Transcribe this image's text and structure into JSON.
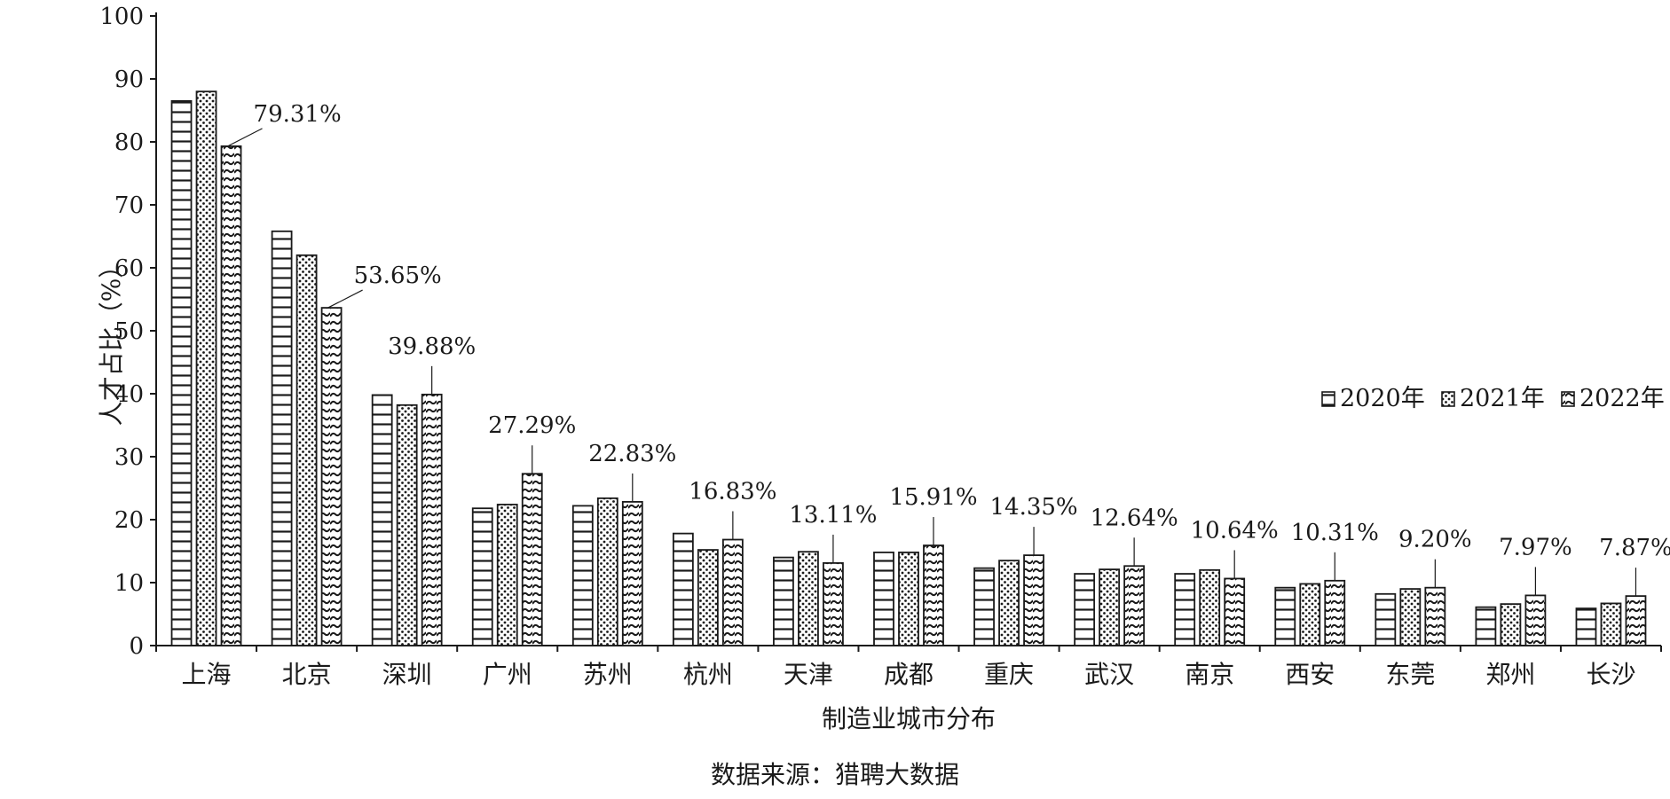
{
  "chart_data": {
    "type": "bar",
    "xlabel": "制造业城市分布",
    "ylabel": "人才占比（%）",
    "ylim": [
      0,
      100
    ],
    "yticks": [
      0,
      10,
      20,
      30,
      40,
      50,
      60,
      70,
      80,
      90,
      100
    ],
    "grid": false,
    "legend_position": "right",
    "categories": [
      "上海",
      "北京",
      "深圳",
      "广州",
      "苏州",
      "杭州",
      "天津",
      "成都",
      "重庆",
      "武汉",
      "南京",
      "西安",
      "东莞",
      "郑州",
      "长沙"
    ],
    "series": [
      {
        "name": "2020年",
        "pattern": "horizontal-lines",
        "values": [
          86.5,
          65.8,
          39.8,
          21.8,
          22.2,
          17.8,
          14.0,
          14.8,
          12.3,
          11.4,
          11.4,
          9.2,
          8.2,
          6.1,
          5.9
        ]
      },
      {
        "name": "2021年",
        "pattern": "dots",
        "values": [
          88.0,
          62.0,
          38.2,
          22.4,
          23.4,
          15.2,
          14.9,
          14.8,
          13.5,
          12.1,
          12.0,
          9.8,
          9.0,
          6.6,
          6.7
        ]
      },
      {
        "name": "2022年",
        "pattern": "waves",
        "values": [
          79.31,
          53.65,
          39.88,
          27.29,
          22.83,
          16.83,
          13.11,
          15.91,
          14.35,
          12.64,
          10.64,
          10.31,
          9.2,
          7.97,
          7.87
        ]
      }
    ],
    "annotations": [
      "79.31%",
      "53.65%",
      "39.88%",
      "27.29%",
      "22.83%",
      "16.83%",
      "13.11%",
      "15.91%",
      "14.35%",
      "12.64%",
      "10.64%",
      "10.31%",
      "9.20%",
      "7.97%",
      "7.87%"
    ]
  },
  "source_note": "数据来源：猎聘大数据",
  "colors": {
    "ink": "#1a1a1a",
    "background": "#ffffff"
  }
}
